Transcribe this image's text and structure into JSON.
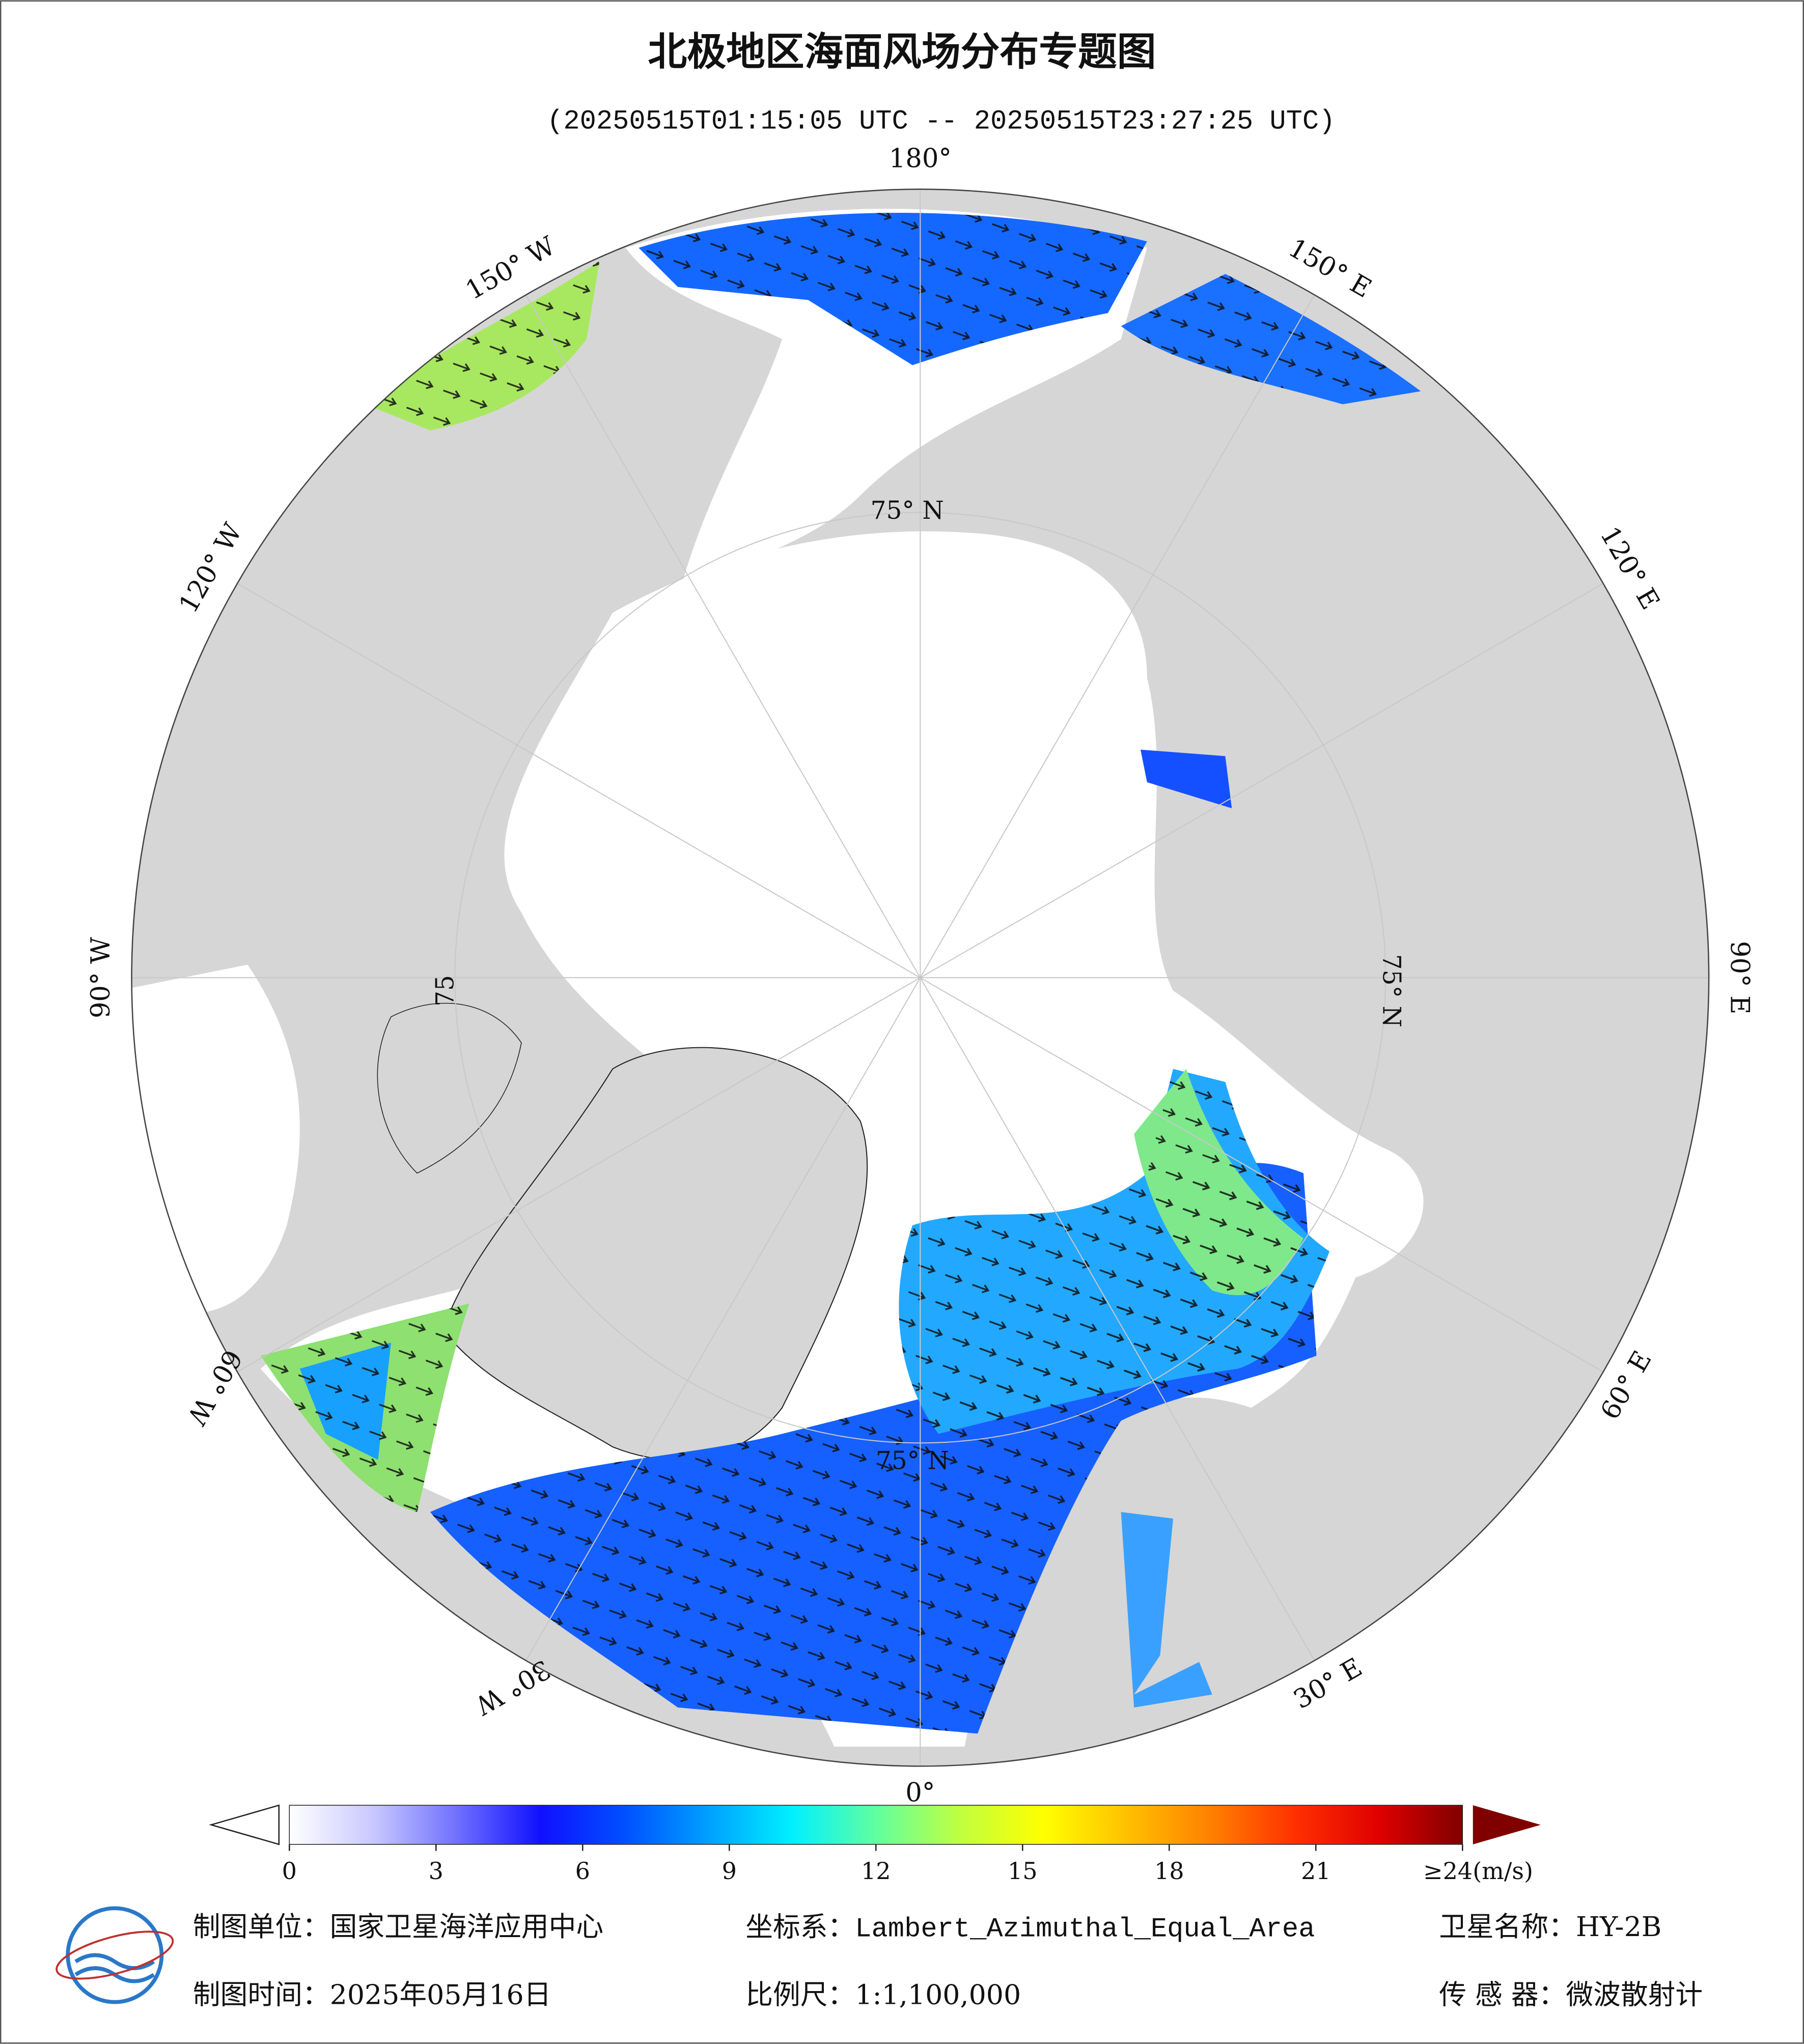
{
  "header": {
    "title": "北极地区海面风场分布专题图",
    "subtitle": "(20250515T01:15:05 UTC -- 20250515T23:27:25 UTC)"
  },
  "map": {
    "lon_labels": [
      "180°",
      "150° E",
      "120° E",
      "90° E",
      "60° E",
      "30° E",
      "0°",
      "30° W",
      "60° W",
      "90° W",
      "120° W",
      "150° W"
    ],
    "lat_labels": [
      "75° N",
      "75° N",
      "75° N",
      "75"
    ]
  },
  "colorbar": {
    "range": [
      0,
      24
    ],
    "ticks": [
      0,
      3,
      6,
      9,
      12,
      15,
      18,
      21,
      {
        "value": 24,
        "label": "≥24(m/s)"
      }
    ],
    "colormap": [
      "#ffffff",
      "#c8c8ff",
      "#7070ff",
      "#1010ff",
      "#0050ff",
      "#00a0ff",
      "#00f0ff",
      "#60ffa0",
      "#c0ff40",
      "#ffff00",
      "#ffc000",
      "#ff8000",
      "#ff3000",
      "#e00000",
      "#800000"
    ]
  },
  "footer": {
    "unit": "制图单位：国家卫星海洋应用中心",
    "coordinate": "坐标系：Lambert_Azimuthal_Equal_Area",
    "satellite": "卫星名称：HY-2B",
    "date": "制图时间：2025年05月16日",
    "scale": "比例尺：1:1,100,000",
    "sensor": "传 感 器：微波散射计"
  }
}
